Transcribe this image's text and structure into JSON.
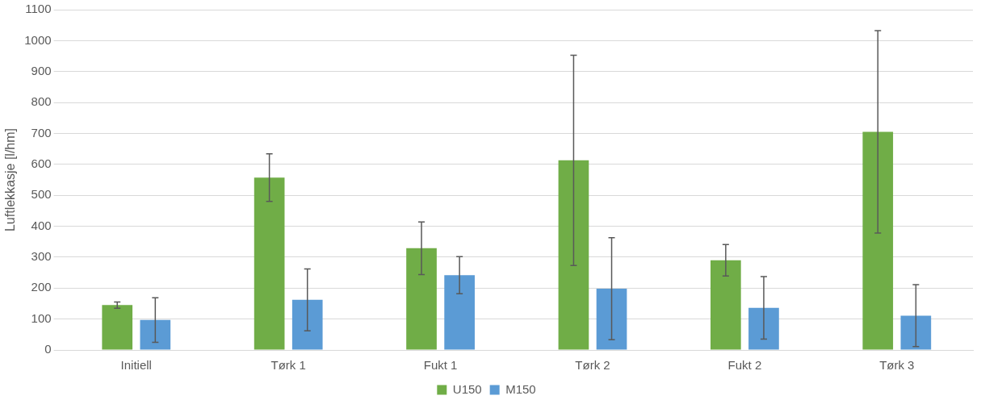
{
  "chart_data": {
    "type": "bar",
    "ylabel": "Luftlekkasje [l/hm]",
    "categories": [
      "Initiell",
      "Tørk 1",
      "Fukt 1",
      "Tørk 2",
      "Fukt 2",
      "Tørk 3"
    ],
    "series": [
      {
        "name": "U150",
        "color": "#70ad47",
        "values": [
          145,
          557,
          329,
          613,
          290,
          705
        ],
        "errors": [
          10,
          77,
          85,
          340,
          51,
          327
        ]
      },
      {
        "name": "M150",
        "color": "#5b9bd5",
        "values": [
          97,
          162,
          242,
          198,
          136,
          111
        ],
        "errors": [
          72,
          100,
          60,
          165,
          101,
          100
        ]
      }
    ],
    "ylim": [
      0,
      1100
    ],
    "yticks": [
      0,
      100,
      200,
      300,
      400,
      500,
      600,
      700,
      800,
      900,
      1000,
      1100
    ],
    "grid": "y",
    "legend": "bottom"
  }
}
